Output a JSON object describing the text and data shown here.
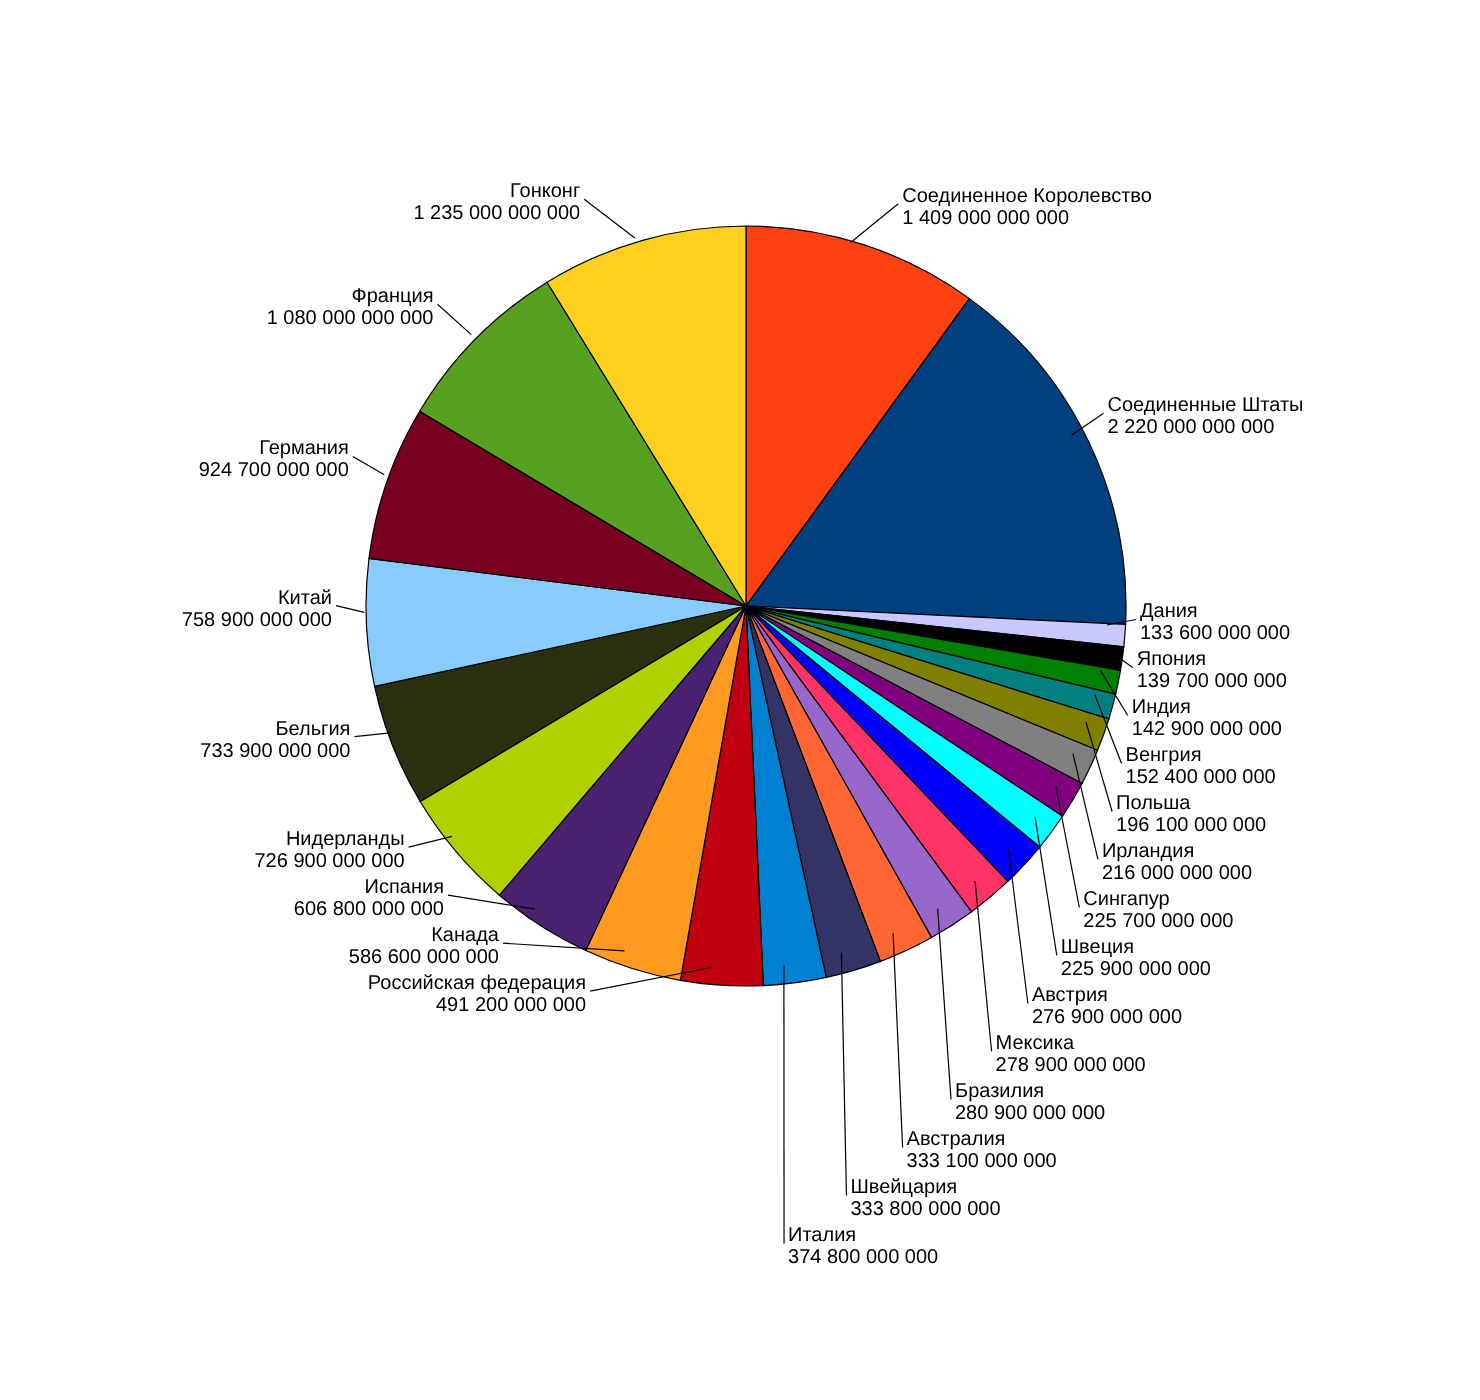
{
  "chart_data": {
    "type": "pie",
    "data_labels": true,
    "categories": [
      "Соединенное Королевство",
      "Соединенные Штаты",
      "Дания",
      "Япония",
      "Индия",
      "Венгрия",
      "Польша",
      "Ирландия",
      "Сингапур",
      "Швеция",
      "Австрия",
      "Мексика",
      "Бразилия",
      "Австралия",
      "Швейцария",
      "Италия",
      "Российская федерация",
      "Канада",
      "Испания",
      "Нидерланды",
      "Бельгия",
      "Китай",
      "Германия",
      "Франция",
      "Гонконг"
    ],
    "values": [
      1409000000000,
      2220000000000,
      133600000000,
      139700000000,
      142900000000,
      152400000000,
      196100000000,
      216000000000,
      225700000000,
      225900000000,
      276900000000,
      278900000000,
      280900000000,
      333100000000,
      333800000000,
      374800000000,
      491200000000,
      586600000000,
      606800000000,
      726900000000,
      733900000000,
      758900000000,
      924700000000,
      1080000000000,
      1235000000000
    ],
    "colors": [
      "#ff4010",
      "#004080",
      "#c8c8ff",
      "#000000",
      "#008000",
      "#008080",
      "#808000",
      "#808080",
      "#800080",
      "#00ffff",
      "#0000ff",
      "#ff3366",
      "#9966cc",
      "#ff6633",
      "#333366",
      "#0080d0",
      "#c00010",
      "#ff9920",
      "#4a2070",
      "#b0d000",
      "#283010",
      "#88ccff",
      "#780020",
      "#58a020",
      "#ffd020"
    ]
  }
}
